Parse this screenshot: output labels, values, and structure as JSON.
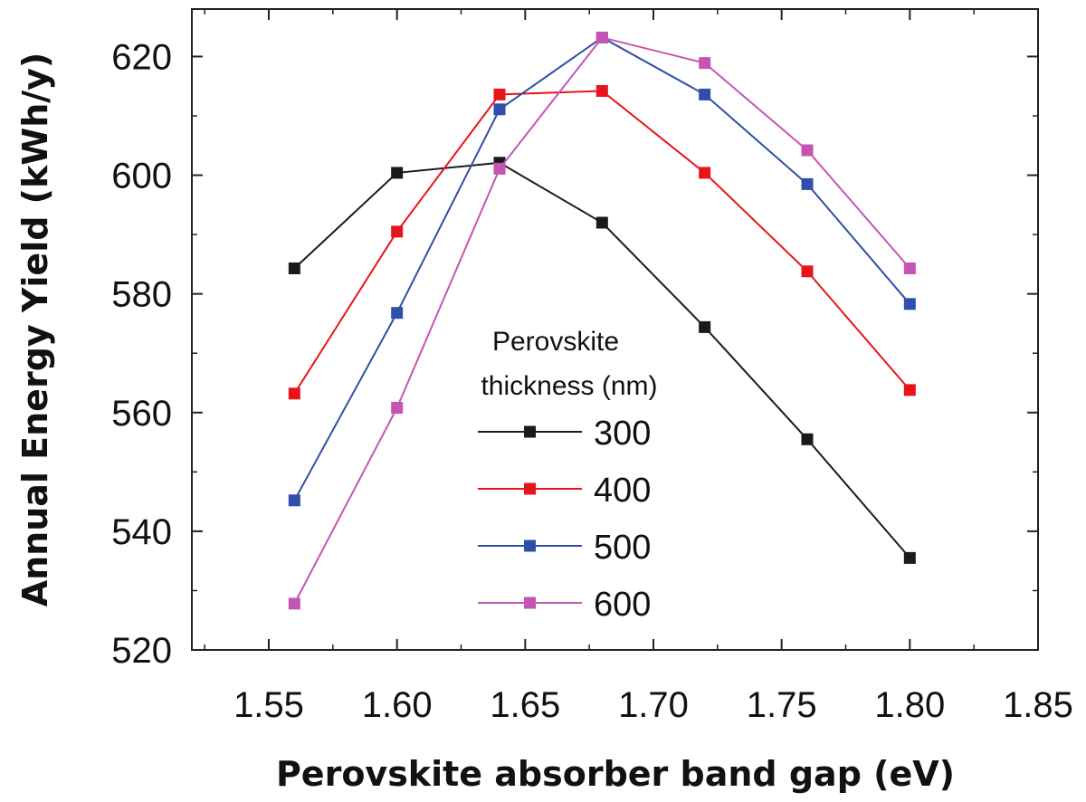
{
  "chart_data": {
    "type": "line",
    "title": "",
    "xlabel": "Perovskite absorber band gap (eV)",
    "ylabel": "Annual Energy Yield (kWh/y)",
    "xlim": [
      1.52,
      1.85
    ],
    "ylim": [
      520,
      628
    ],
    "x_ticks": [
      "1.55",
      "1.60",
      "1.65",
      "1.70",
      "1.75",
      "1.80",
      "1.85"
    ],
    "y_ticks": [
      "520",
      "540",
      "560",
      "580",
      "600",
      "620"
    ],
    "x": [
      1.56,
      1.6,
      1.64,
      1.68,
      1.72,
      1.76,
      1.8
    ],
    "legend_title_lines": [
      "Perovskite",
      "thickness (nm)"
    ],
    "legend_position": "center",
    "series": [
      {
        "name": "300",
        "color": "#1a1a1a",
        "values": [
          584.3,
          600.4,
          602.1,
          592.0,
          574.4,
          555.5,
          535.5
        ]
      },
      {
        "name": "400",
        "color": "#e8141b",
        "values": [
          563.2,
          590.5,
          613.6,
          614.2,
          600.4,
          583.8,
          563.8
        ]
      },
      {
        "name": "500",
        "color": "#2f4fa8",
        "values": [
          545.2,
          576.8,
          611.1,
          623.2,
          613.6,
          598.5,
          578.3
        ]
      },
      {
        "name": "600",
        "color": "#c455b4",
        "values": [
          527.8,
          560.8,
          601.1,
          623.2,
          618.9,
          604.2,
          584.3
        ]
      }
    ]
  }
}
